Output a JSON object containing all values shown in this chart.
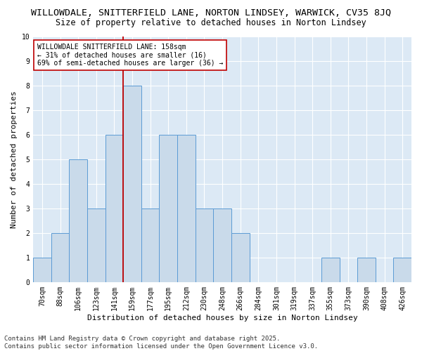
{
  "title1": "WILLOWDALE, SNITTERFIELD LANE, NORTON LINDSEY, WARWICK, CV35 8JQ",
  "title2": "Size of property relative to detached houses in Norton Lindsey",
  "xlabel": "Distribution of detached houses by size in Norton Lindsey",
  "ylabel": "Number of detached properties",
  "categories": [
    "70sqm",
    "88sqm",
    "106sqm",
    "123sqm",
    "141sqm",
    "159sqm",
    "177sqm",
    "195sqm",
    "212sqm",
    "230sqm",
    "248sqm",
    "266sqm",
    "284sqm",
    "301sqm",
    "319sqm",
    "337sqm",
    "355sqm",
    "373sqm",
    "390sqm",
    "408sqm",
    "426sqm"
  ],
  "values": [
    1,
    2,
    5,
    3,
    6,
    8,
    3,
    6,
    6,
    3,
    3,
    2,
    0,
    0,
    0,
    0,
    1,
    0,
    1,
    0,
    1
  ],
  "bar_color": "#c9daea",
  "bar_edge_color": "#5b9bd5",
  "highlight_index": 5,
  "highlight_line_color": "#c00000",
  "annotation_line1": "WILLOWDALE SNITTERFIELD LANE: 158sqm",
  "annotation_line2": "← 31% of detached houses are smaller (16)",
  "annotation_line3": "69% of semi-detached houses are larger (36) →",
  "annotation_box_color": "#ffffff",
  "annotation_box_edge_color": "#c00000",
  "ylim": [
    0,
    10
  ],
  "yticks": [
    0,
    1,
    2,
    3,
    4,
    5,
    6,
    7,
    8,
    9,
    10
  ],
  "footer_text": "Contains HM Land Registry data © Crown copyright and database right 2025.\nContains public sector information licensed under the Open Government Licence v3.0.",
  "fig_bg_color": "#ffffff",
  "plot_bg_color": "#dce9f5",
  "grid_color": "#ffffff",
  "title_fontsize": 9.5,
  "subtitle_fontsize": 8.5,
  "axis_label_fontsize": 8,
  "tick_fontsize": 7,
  "annotation_fontsize": 7,
  "footer_fontsize": 6.5
}
